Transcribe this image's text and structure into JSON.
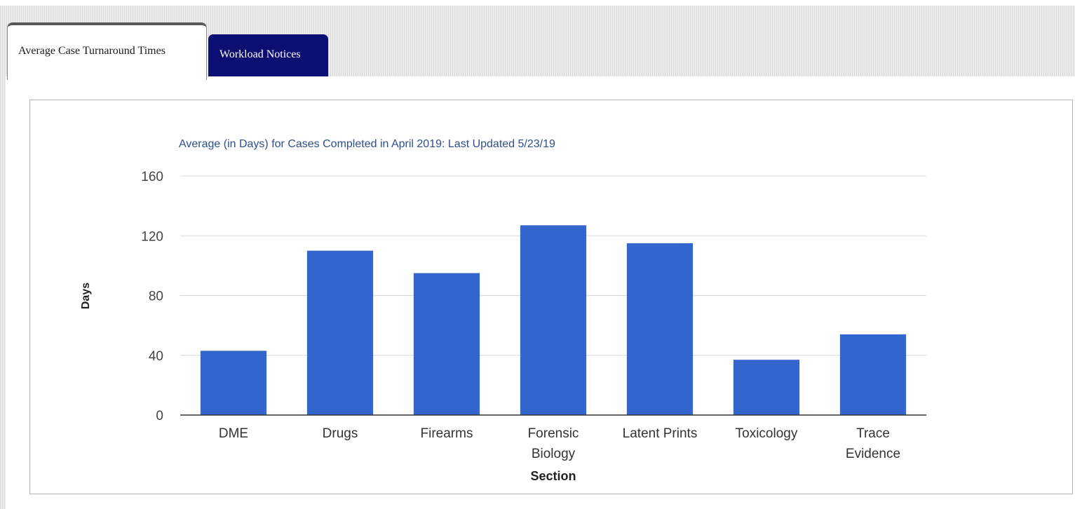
{
  "tabs": [
    {
      "label": "Average Case Turnaround Times",
      "active": true
    },
    {
      "label": "Workload Notices",
      "active": false
    }
  ],
  "colors": {
    "bar": "#3366cc",
    "title": "#2d4f8f",
    "tab_inactive_bg": "#0d0e72"
  },
  "chart_data": {
    "type": "bar",
    "title": "Average (in Days) for Cases Completed in April 2019: Last Updated 5/23/19",
    "xlabel": "Section",
    "ylabel": "Days",
    "categories": [
      [
        "DME"
      ],
      [
        "Drugs"
      ],
      [
        "Firearms"
      ],
      [
        "Forensic",
        "Biology"
      ],
      [
        "Latent Prints"
      ],
      [
        "Toxicology"
      ],
      [
        "Trace",
        "Evidence"
      ]
    ],
    "values": [
      43,
      110,
      95,
      127,
      115,
      37,
      54
    ],
    "ylim": [
      0,
      160
    ],
    "yticks": [
      0,
      40,
      80,
      120,
      160
    ],
    "grid": true,
    "legend": "none"
  }
}
